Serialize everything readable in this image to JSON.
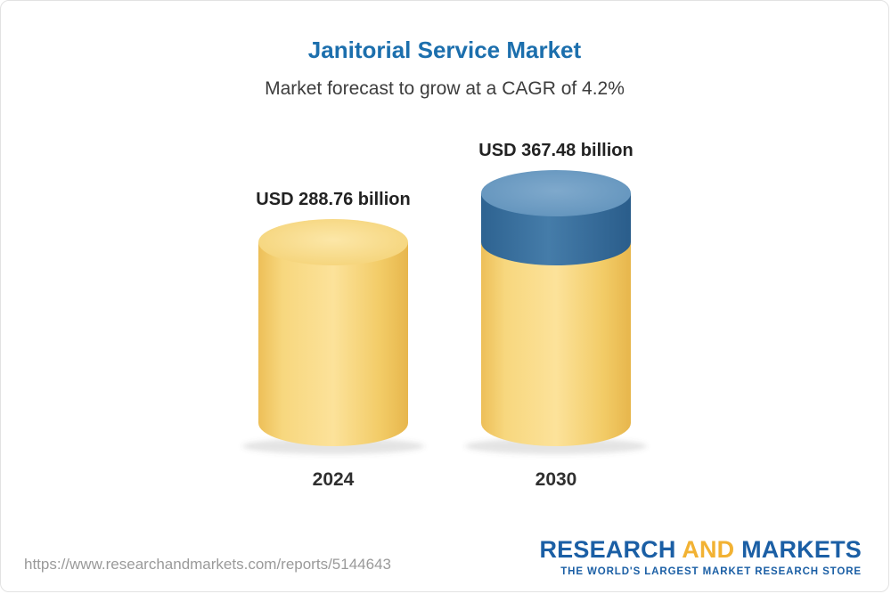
{
  "chart_data": {
    "type": "bar",
    "title": "Janitorial Service Market",
    "subtitle": "Market forecast to grow at a CAGR of 4.2%",
    "categories": [
      "2024",
      "2030"
    ],
    "values": [
      288.76,
      367.48
    ],
    "value_labels": [
      "USD 288.76 billion",
      "USD 367.48 billion"
    ],
    "unit": "USD billion",
    "ylim": [
      0,
      400
    ],
    "grid": false,
    "legend": "none",
    "colors": {
      "base_bar": "#f6d47a",
      "growth_segment": "#41789f",
      "title_text": "#1c6fad"
    }
  },
  "footer": {
    "url": "https://www.researchandmarkets.com/reports/5144643",
    "logo": {
      "part1": "RESEARCH",
      "part2": "AND",
      "part3": "MARKETS",
      "tagline": "THE WORLD'S LARGEST MARKET RESEARCH STORE"
    }
  }
}
